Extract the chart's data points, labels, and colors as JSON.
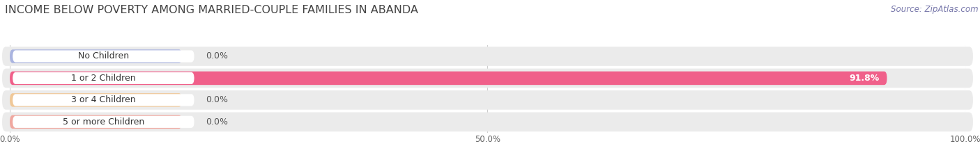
{
  "title": "INCOME BELOW POVERTY AMONG MARRIED-COUPLE FAMILIES IN ABANDA",
  "source": "Source: ZipAtlas.com",
  "categories": [
    "No Children",
    "1 or 2 Children",
    "3 or 4 Children",
    "5 or more Children"
  ],
  "values": [
    0.0,
    91.8,
    0.0,
    0.0
  ],
  "bar_colors": [
    "#aab4e0",
    "#f0608a",
    "#f0c898",
    "#f0a8a0"
  ],
  "background_color": "#ffffff",
  "row_bg_color": "#ebebeb",
  "xlim": [
    0,
    100
  ],
  "xticks": [
    0.0,
    50.0,
    100.0
  ],
  "xtick_labels": [
    "0.0%",
    "50.0%",
    "100.0%"
  ],
  "bar_height": 0.62,
  "title_fontsize": 11.5,
  "label_fontsize": 9,
  "tick_fontsize": 8.5,
  "source_fontsize": 8.5,
  "value_label_fontsize": 9
}
